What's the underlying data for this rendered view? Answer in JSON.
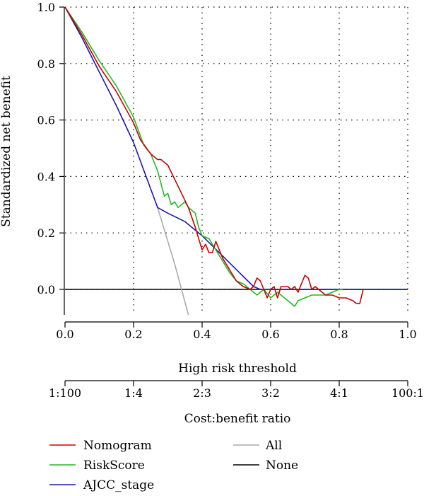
{
  "chart_data": {
    "type": "line",
    "title": "",
    "ylabel": "Standardized net benefit",
    "xlabel": "High risk threshold",
    "xlabel2": "Cost:benefit ratio",
    "xlim": [
      0,
      1
    ],
    "ylim": [
      -0.09,
      1.0
    ],
    "grid": true,
    "x_ticks": [
      0.0,
      0.2,
      0.4,
      0.6,
      0.8,
      1.0
    ],
    "x_tick_labels": [
      "0.0",
      "0.2",
      "0.4",
      "0.6",
      "0.8",
      "1.0"
    ],
    "y_ticks": [
      0.0,
      0.2,
      0.4,
      0.6,
      0.8,
      1.0
    ],
    "y_tick_labels": [
      "0.0",
      "0.2",
      "0.4",
      "0.6",
      "0.8",
      "1.0"
    ],
    "ratio_ticks": [
      0.0,
      0.2,
      0.4,
      0.6,
      0.8,
      1.0
    ],
    "ratio_tick_labels": [
      "1:100",
      "1:4",
      "2:3",
      "3:2",
      "4:1",
      "100:1"
    ],
    "legend_position": "bottom",
    "series": [
      {
        "name": "Nomogram",
        "color": "#cc0000",
        "x": [
          0.0,
          0.05,
          0.1,
          0.15,
          0.2,
          0.22,
          0.25,
          0.27,
          0.28,
          0.3,
          0.32,
          0.34,
          0.36,
          0.38,
          0.39,
          0.4,
          0.41,
          0.42,
          0.43,
          0.44,
          0.45,
          0.46,
          0.48,
          0.5,
          0.52,
          0.54,
          0.55,
          0.56,
          0.57,
          0.58,
          0.59,
          0.6,
          0.61,
          0.62,
          0.63,
          0.64,
          0.65,
          0.66,
          0.67,
          0.68,
          0.69,
          0.7,
          0.71,
          0.72,
          0.73,
          0.74,
          0.75,
          0.76,
          0.78,
          0.8,
          0.82,
          0.84,
          0.85,
          0.86,
          0.87
        ],
        "y": [
          1.0,
          0.9,
          0.79,
          0.7,
          0.59,
          0.53,
          0.48,
          0.46,
          0.46,
          0.44,
          0.39,
          0.34,
          0.29,
          0.22,
          0.18,
          0.14,
          0.16,
          0.13,
          0.13,
          0.17,
          0.14,
          0.11,
          0.07,
          0.03,
          0.01,
          0.0,
          0.01,
          0.04,
          0.03,
          0.0,
          -0.03,
          0.0,
          0.01,
          -0.03,
          0.01,
          0.01,
          0.01,
          0.0,
          0.01,
          -0.01,
          0.02,
          0.05,
          0.04,
          0.0,
          0.01,
          0.0,
          -0.01,
          -0.02,
          -0.02,
          -0.03,
          -0.03,
          -0.04,
          -0.05,
          -0.05,
          0.0
        ]
      },
      {
        "name": "RiskScore",
        "color": "#22bb22",
        "x": [
          0.0,
          0.05,
          0.1,
          0.15,
          0.2,
          0.23,
          0.25,
          0.27,
          0.29,
          0.3,
          0.31,
          0.32,
          0.33,
          0.34,
          0.35,
          0.36,
          0.37,
          0.38,
          0.39,
          0.4,
          0.42,
          0.44,
          0.46,
          0.48,
          0.5,
          0.52,
          0.54,
          0.56,
          0.58,
          0.6,
          0.62,
          0.64,
          0.66,
          0.67,
          0.68,
          0.7,
          0.72,
          0.74,
          0.76,
          0.78,
          0.8,
          0.81
        ],
        "y": [
          1.0,
          0.91,
          0.81,
          0.72,
          0.61,
          0.51,
          0.48,
          0.42,
          0.33,
          0.34,
          0.3,
          0.31,
          0.29,
          0.3,
          0.31,
          0.29,
          0.28,
          0.27,
          0.22,
          0.19,
          0.18,
          0.14,
          0.1,
          0.06,
          0.03,
          0.02,
          0.0,
          -0.02,
          0.0,
          -0.03,
          -0.01,
          -0.03,
          -0.05,
          -0.06,
          -0.04,
          -0.03,
          -0.02,
          -0.02,
          -0.02,
          -0.01,
          0.0,
          0.0
        ]
      },
      {
        "name": "AJCC_stage",
        "color": "#1a1ab0",
        "x": [
          0.0,
          0.05,
          0.1,
          0.15,
          0.2,
          0.27,
          0.3,
          0.35,
          0.4,
          0.45,
          0.5,
          0.55,
          0.57,
          0.6,
          0.7,
          0.8,
          0.9,
          1.0
        ],
        "y": [
          1.0,
          0.89,
          0.77,
          0.65,
          0.52,
          0.29,
          0.27,
          0.24,
          0.19,
          0.13,
          0.07,
          0.01,
          0.0,
          0.0,
          0.0,
          0.0,
          0.0,
          0.0
        ]
      },
      {
        "name": "All",
        "color": "#aaaaaa",
        "x": [
          0.27,
          0.3,
          0.32,
          0.34,
          0.36
        ],
        "y": [
          0.29,
          0.17,
          0.09,
          0.0,
          -0.09
        ]
      },
      {
        "name": "None",
        "color": "#000000",
        "x": [
          0.0,
          1.0
        ],
        "y": [
          0.0,
          0.0
        ]
      }
    ]
  }
}
